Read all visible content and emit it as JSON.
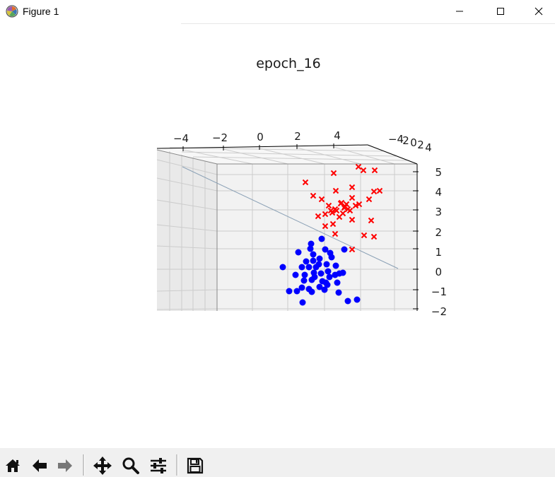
{
  "window": {
    "title": "Figure 1",
    "icons": [
      "matplotlib-icon",
      "minimize-icon",
      "maximize-icon",
      "close-icon"
    ]
  },
  "toolbar": {
    "buttons": [
      "home-icon",
      "back-arrow-icon",
      "forward-arrow-icon",
      "pan-icon",
      "zoom-icon",
      "configure-subplots-icon",
      "save-icon"
    ]
  },
  "chart_data": {
    "type": "scatter",
    "title": "epoch_16",
    "projection": "3d",
    "grid": true,
    "x_ticks": [
      "−4",
      "−2",
      "0",
      "2",
      "4"
    ],
    "y_ticks": [
      "−4",
      "2",
      "0",
      "2",
      "4"
    ],
    "z_ticks": [
      "5",
      "4",
      "3",
      "2",
      "1",
      "0",
      "−1",
      "−2"
    ],
    "zlim": [
      -2,
      5
    ],
    "series": [
      {
        "marker": "x",
        "color": "#ff0000",
        "points": [
          [
            432,
            258
          ],
          [
            472,
            245
          ],
          [
            507,
            236
          ],
          [
            514,
            241
          ],
          [
            530,
            241
          ],
          [
            498,
            265
          ],
          [
            475,
            270
          ],
          [
            455,
            282
          ],
          [
            522,
            282
          ],
          [
            529,
            271
          ],
          [
            537,
            270
          ],
          [
            443,
            277
          ],
          [
            465,
            291
          ],
          [
            482,
            288
          ],
          [
            488,
            292
          ],
          [
            474,
            296
          ],
          [
            492,
            296
          ],
          [
            503,
            291
          ],
          [
            485,
            302
          ],
          [
            495,
            298
          ],
          [
            470,
            301
          ],
          [
            480,
            307
          ],
          [
            460,
            303
          ],
          [
            498,
            280
          ],
          [
            508,
            289
          ],
          [
            498,
            311
          ],
          [
            450,
            306
          ],
          [
            471,
            317
          ],
          [
            460,
            320
          ],
          [
            515,
            333
          ],
          [
            529,
            335
          ],
          [
            474,
            331
          ],
          [
            525,
            312
          ],
          [
            498,
            353
          ],
          [
            483,
            287
          ],
          [
            490,
            289
          ],
          [
            476,
            298
          ],
          [
            468,
            298
          ],
          [
            487,
            294
          ]
        ]
      },
      {
        "marker": "o",
        "color": "#0000ff",
        "points": [
          [
            440,
            345
          ],
          [
            455,
            338
          ],
          [
            422,
            357
          ],
          [
            443,
            360
          ],
          [
            460,
            353
          ],
          [
            467,
            358
          ],
          [
            487,
            353
          ],
          [
            443,
            369
          ],
          [
            433,
            370
          ],
          [
            452,
            366
          ],
          [
            469,
            364
          ],
          [
            462,
            374
          ],
          [
            437,
            378
          ],
          [
            427,
            378
          ],
          [
            447,
            378
          ],
          [
            475,
            376
          ],
          [
            400,
            378
          ],
          [
            418,
            389
          ],
          [
            431,
            389
          ],
          [
            454,
            387
          ],
          [
            466,
            392
          ],
          [
            480,
            387
          ],
          [
            485,
            386
          ],
          [
            474,
            389
          ],
          [
            430,
            397
          ],
          [
            441,
            396
          ],
          [
            461,
            400
          ],
          [
            477,
            400
          ],
          [
            452,
            406
          ],
          [
            437,
            409
          ],
          [
            463,
            403
          ],
          [
            427,
            407
          ],
          [
            409,
            412
          ],
          [
            420,
            412
          ],
          [
            441,
            413
          ],
          [
            479,
            414
          ],
          [
            505,
            424
          ],
          [
            428,
            428
          ],
          [
            492,
            426
          ],
          [
            456,
            398
          ],
          [
            445,
            392
          ],
          [
            464,
            384
          ],
          [
            444,
            386
          ],
          [
            451,
            374
          ],
          [
            439,
            352
          ],
          [
            459,
            410
          ]
        ]
      }
    ]
  }
}
